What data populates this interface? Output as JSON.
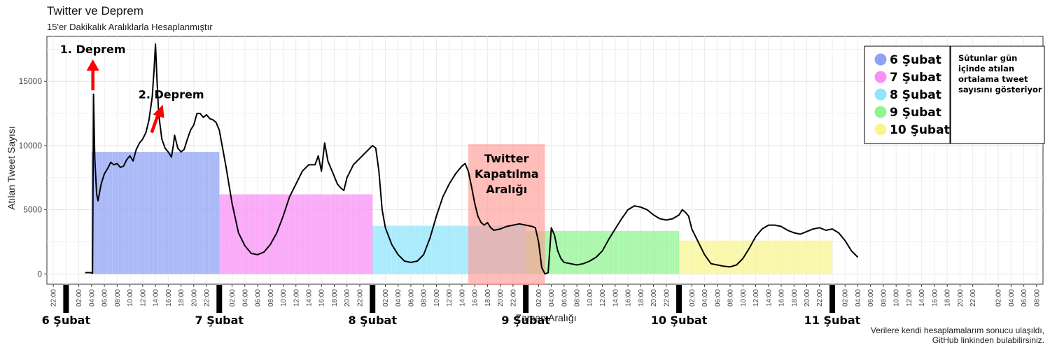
{
  "header": {
    "title": "Twitter ve Deprem",
    "subtitle": "15'er Dakikalık Aralıklarla Hesaplanmıştır"
  },
  "caption": {
    "line1": "Verilere kendi hesaplamalarım sonucu ulaşıldı,",
    "line2": "GitHub linkinden bulabilirsiniz."
  },
  "chart_data": {
    "type": "line",
    "xlabel": "Zaman Aralığı",
    "ylabel": "Atılan Tweet Sayısı",
    "ylim": [
      -800,
      18500
    ],
    "xlim_hours": [
      -3,
      153
    ],
    "y_ticks": [
      0,
      5000,
      10000,
      15000
    ],
    "x_tick_labels": [
      "22:00",
      "00:00",
      "02:00",
      "04:00",
      "06:00",
      "08:00",
      "10:00",
      "12:00",
      "14:00",
      "16:00",
      "18:00",
      "20:00",
      "22:00"
    ],
    "grid": true,
    "day_labels": [
      "6 Şubat",
      "7 Şubat",
      "8 Şubat",
      "9 Şubat",
      "10 Şubat",
      "11 Şubat"
    ],
    "daily_average_bars": [
      {
        "name": "6 Şubat",
        "start_hour": 4,
        "end_hour": 24,
        "value": 9500,
        "color": "#8fa3f5"
      },
      {
        "name": "7 Şubat",
        "start_hour": 24,
        "end_hour": 48,
        "value": 6200,
        "color": "#f98ff5"
      },
      {
        "name": "8 Şubat",
        "start_hour": 48,
        "end_hour": 72,
        "value": 3750,
        "color": "#8fe6fb"
      },
      {
        "name": "9 Şubat",
        "start_hour": 72,
        "end_hour": 96,
        "value": 3350,
        "color": "#8ff591"
      },
      {
        "name": "10 Şubat",
        "start_hour": 96,
        "end_hour": 120,
        "value": 2600,
        "color": "#f7f58f"
      }
    ],
    "shutdown_region": {
      "label_lines": [
        "Twitter",
        "Kapatılma",
        "Aralığı"
      ],
      "start_hour": 63,
      "end_hour": 75,
      "top": 10100,
      "color": "#ff9b95"
    },
    "annotations": [
      {
        "text": "1. Deprem",
        "hour": 4.2,
        "value": 14200
      },
      {
        "text": "2. Deprem",
        "hour": 13.4,
        "value": 11000
      }
    ],
    "legend": {
      "placement": "top-right",
      "note": [
        "Sütunlar gün",
        "içinde atılan",
        "ortalama tweet",
        "sayısını gösteriyor"
      ]
    },
    "series": [
      {
        "color": "#000000",
        "points": [
          [
            3.0,
            100
          ],
          [
            3.9,
            100
          ],
          [
            4.15,
            50
          ],
          [
            4.3,
            14000
          ],
          [
            4.5,
            9000
          ],
          [
            4.8,
            6200
          ],
          [
            5.0,
            5700
          ],
          [
            5.5,
            7000
          ],
          [
            6.0,
            7800
          ],
          [
            6.5,
            8200
          ],
          [
            7.0,
            8700
          ],
          [
            7.5,
            8500
          ],
          [
            8.0,
            8600
          ],
          [
            8.5,
            8300
          ],
          [
            9.0,
            8400
          ],
          [
            9.5,
            8900
          ],
          [
            10.0,
            9200
          ],
          [
            10.5,
            8800
          ],
          [
            11.0,
            9700
          ],
          [
            11.5,
            10200
          ],
          [
            12.0,
            10500
          ],
          [
            12.5,
            11000
          ],
          [
            13.0,
            12000
          ],
          [
            13.5,
            13800
          ],
          [
            13.8,
            16000
          ],
          [
            14.0,
            17900
          ],
          [
            14.25,
            15000
          ],
          [
            14.5,
            12500
          ],
          [
            15.0,
            10500
          ],
          [
            15.5,
            9800
          ],
          [
            16.0,
            9500
          ],
          [
            16.5,
            9100
          ],
          [
            16.8,
            10000
          ],
          [
            17.0,
            10800
          ],
          [
            17.5,
            9800
          ],
          [
            18.0,
            9500
          ],
          [
            18.5,
            9700
          ],
          [
            19.0,
            10500
          ],
          [
            19.5,
            11200
          ],
          [
            20.0,
            11600
          ],
          [
            20.5,
            12500
          ],
          [
            21.0,
            12500
          ],
          [
            21.5,
            12200
          ],
          [
            22.0,
            12400
          ],
          [
            22.5,
            12100
          ],
          [
            23.0,
            12000
          ],
          [
            23.5,
            11800
          ],
          [
            24.0,
            11200
          ],
          [
            25.0,
            8500
          ],
          [
            26.0,
            5500
          ],
          [
            27.0,
            3200
          ],
          [
            28.0,
            2200
          ],
          [
            29.0,
            1600
          ],
          [
            30.0,
            1500
          ],
          [
            31.0,
            1700
          ],
          [
            32.0,
            2300
          ],
          [
            33.0,
            3200
          ],
          [
            34.0,
            4500
          ],
          [
            35.0,
            6000
          ],
          [
            36.0,
            7000
          ],
          [
            37.0,
            8000
          ],
          [
            38.0,
            8500
          ],
          [
            39.0,
            8500
          ],
          [
            39.5,
            9200
          ],
          [
            40.0,
            8000
          ],
          [
            40.5,
            10200
          ],
          [
            41.0,
            8800
          ],
          [
            41.5,
            8200
          ],
          [
            42.0,
            7600
          ],
          [
            42.5,
            7000
          ],
          [
            43.0,
            6700
          ],
          [
            43.5,
            6500
          ],
          [
            44.0,
            7500
          ],
          [
            45.0,
            8500
          ],
          [
            46.0,
            9000
          ],
          [
            47.0,
            9500
          ],
          [
            48.0,
            10000
          ],
          [
            48.5,
            9800
          ],
          [
            49.0,
            8000
          ],
          [
            49.5,
            5000
          ],
          [
            50.0,
            3600
          ],
          [
            51.0,
            2300
          ],
          [
            52.0,
            1500
          ],
          [
            53.0,
            1000
          ],
          [
            54.0,
            900
          ],
          [
            55.0,
            1000
          ],
          [
            56.0,
            1500
          ],
          [
            57.0,
            2800
          ],
          [
            58.0,
            4500
          ],
          [
            59.0,
            6000
          ],
          [
            60.0,
            7000
          ],
          [
            61.0,
            7800
          ],
          [
            62.0,
            8400
          ],
          [
            62.5,
            8600
          ],
          [
            63.0,
            8000
          ],
          [
            63.5,
            6800
          ],
          [
            64.0,
            5500
          ],
          [
            64.5,
            4500
          ],
          [
            65.0,
            4000
          ],
          [
            65.5,
            3800
          ],
          [
            66.0,
            4000
          ],
          [
            66.5,
            3600
          ],
          [
            67.0,
            3400
          ],
          [
            68.0,
            3500
          ],
          [
            69.0,
            3700
          ],
          [
            70.0,
            3800
          ],
          [
            71.0,
            3900
          ],
          [
            72.0,
            3800
          ],
          [
            73.0,
            3700
          ],
          [
            73.5,
            3600
          ],
          [
            74.0,
            2500
          ],
          [
            74.5,
            500
          ],
          [
            75.0,
            0
          ],
          [
            75.5,
            100
          ],
          [
            76.0,
            3600
          ],
          [
            76.5,
            3000
          ],
          [
            77.0,
            1800
          ],
          [
            77.5,
            1200
          ],
          [
            78.0,
            900
          ],
          [
            79.0,
            800
          ],
          [
            80.0,
            700
          ],
          [
            81.0,
            800
          ],
          [
            82.0,
            1000
          ],
          [
            83.0,
            1300
          ],
          [
            84.0,
            1800
          ],
          [
            85.0,
            2700
          ],
          [
            86.0,
            3500
          ],
          [
            87.0,
            4300
          ],
          [
            88.0,
            5000
          ],
          [
            89.0,
            5300
          ],
          [
            90.0,
            5200
          ],
          [
            91.0,
            5000
          ],
          [
            92.0,
            4600
          ],
          [
            93.0,
            4300
          ],
          [
            94.0,
            4200
          ],
          [
            95.0,
            4300
          ],
          [
            96.0,
            4600
          ],
          [
            96.5,
            5000
          ],
          [
            97.0,
            4800
          ],
          [
            97.5,
            4500
          ],
          [
            98.0,
            3500
          ],
          [
            99.0,
            2500
          ],
          [
            100.0,
            1500
          ],
          [
            101.0,
            800
          ],
          [
            102.0,
            700
          ],
          [
            103.0,
            600
          ],
          [
            104.0,
            550
          ],
          [
            105.0,
            700
          ],
          [
            106.0,
            1200
          ],
          [
            107.0,
            2000
          ],
          [
            108.0,
            2900
          ],
          [
            109.0,
            3500
          ],
          [
            110.0,
            3800
          ],
          [
            111.0,
            3800
          ],
          [
            112.0,
            3700
          ],
          [
            113.0,
            3400
          ],
          [
            114.0,
            3200
          ],
          [
            115.0,
            3100
          ],
          [
            116.0,
            3300
          ],
          [
            117.0,
            3500
          ],
          [
            118.0,
            3600
          ],
          [
            119.0,
            3400
          ],
          [
            120.0,
            3500
          ],
          [
            121.0,
            3200
          ],
          [
            122.0,
            2600
          ],
          [
            123.0,
            1800
          ],
          [
            124.0,
            1300
          ]
        ]
      }
    ]
  }
}
